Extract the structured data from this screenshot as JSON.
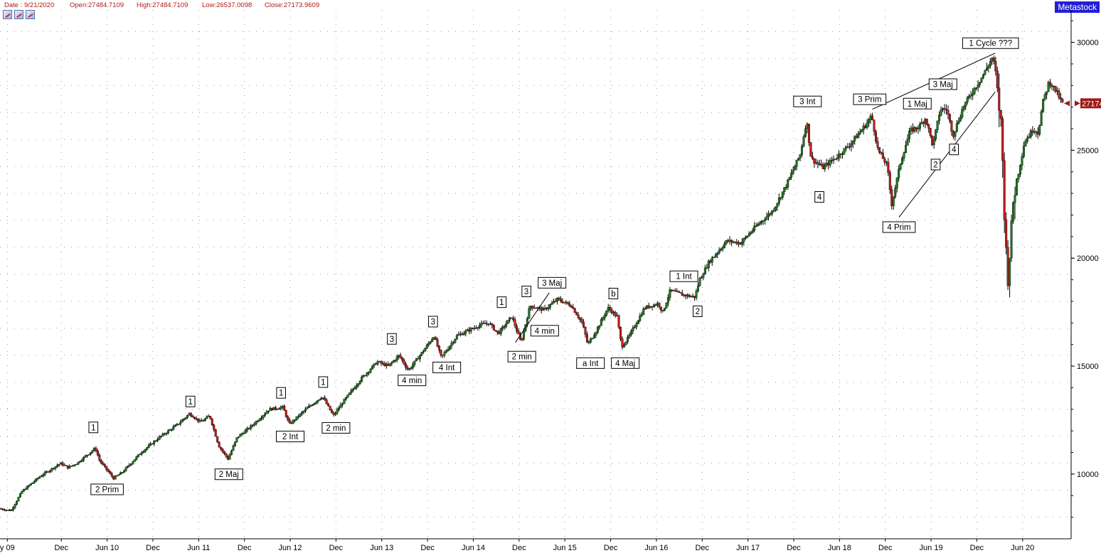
{
  "header": {
    "date": "Date : 9/21/2020",
    "open": "Open:27484.7109",
    "high": "High:27484.7109",
    "low": "Low:26537.0098",
    "close": "Close:27173.9609"
  },
  "brand": "Metastock",
  "toolbar_icons": [
    "chart-zoom-icon",
    "chart-scroll-icon",
    "chart-draw-icon"
  ],
  "colors": {
    "up": "#1a7a1a",
    "down": "#c41818",
    "wick": "#000000",
    "price_marker": "#a01818",
    "brand_bg": "#1f1fd6"
  },
  "chart_data": {
    "type": "candlestick",
    "series_name": "",
    "last_price_label": "27174",
    "ylim": [
      7000,
      31500
    ],
    "y_ticks": [
      10000,
      15000,
      20000,
      25000,
      30000
    ],
    "y_tick_labels": [
      "10000",
      "15000",
      "20000",
      "25000",
      "30000"
    ],
    "x_range": [
      2009.25,
      2020.95
    ],
    "x_ticks": [
      {
        "t": 2009.33,
        "label": "y 09"
      },
      {
        "t": 2009.92,
        "label": "Dec"
      },
      {
        "t": 2010.42,
        "label": "Jun 10"
      },
      {
        "t": 2010.92,
        "label": "Dec"
      },
      {
        "t": 2011.42,
        "label": "Jun 11"
      },
      {
        "t": 2011.92,
        "label": "Dec"
      },
      {
        "t": 2012.42,
        "label": "Jun 12"
      },
      {
        "t": 2012.92,
        "label": "Dec"
      },
      {
        "t": 2013.42,
        "label": "Jun 13"
      },
      {
        "t": 2013.92,
        "label": "Dec"
      },
      {
        "t": 2014.42,
        "label": "Jun 14"
      },
      {
        "t": 2014.92,
        "label": "Dec"
      },
      {
        "t": 2015.42,
        "label": "Jun 15"
      },
      {
        "t": 2015.92,
        "label": "Dec"
      },
      {
        "t": 2016.42,
        "label": "Jun 16"
      },
      {
        "t": 2016.92,
        "label": "Dec"
      },
      {
        "t": 2017.42,
        "label": "Jun 17"
      },
      {
        "t": 2017.92,
        "label": "Dec"
      },
      {
        "t": 2018.42,
        "label": "Jun 18"
      },
      {
        "t": 2018.92,
        "label": "Dec"
      },
      {
        "t": 2019.42,
        "label": "Jun 19"
      },
      {
        "t": 2019.92,
        "label": "Dec"
      },
      {
        "t": 2020.42,
        "label": "Jun 20"
      }
    ],
    "price_path": [
      [
        2009.25,
        8400
      ],
      [
        2009.38,
        8300
      ],
      [
        2009.5,
        9200
      ],
      [
        2009.7,
        9900
      ],
      [
        2009.92,
        10500
      ],
      [
        2010.0,
        10300
      ],
      [
        2010.1,
        10500
      ],
      [
        2010.3,
        11200
      ],
      [
        2010.35,
        10600
      ],
      [
        2010.5,
        9800
      ],
      [
        2010.6,
        10100
      ],
      [
        2010.8,
        11000
      ],
      [
        2011.0,
        11700
      ],
      [
        2011.2,
        12300
      ],
      [
        2011.33,
        12800
      ],
      [
        2011.45,
        12400
      ],
      [
        2011.55,
        12700
      ],
      [
        2011.65,
        11300
      ],
      [
        2011.75,
        10700
      ],
      [
        2011.85,
        11700
      ],
      [
        2012.0,
        12200
      ],
      [
        2012.2,
        13000
      ],
      [
        2012.35,
        13100
      ],
      [
        2012.42,
        12300
      ],
      [
        2012.6,
        13000
      ],
      [
        2012.78,
        13600
      ],
      [
        2012.9,
        12700
      ],
      [
        2013.0,
        13300
      ],
      [
        2013.2,
        14400
      ],
      [
        2013.38,
        15200
      ],
      [
        2013.5,
        15000
      ],
      [
        2013.62,
        15500
      ],
      [
        2013.72,
        14800
      ],
      [
        2013.9,
        15800
      ],
      [
        2014.0,
        16400
      ],
      [
        2014.08,
        15400
      ],
      [
        2014.25,
        16400
      ],
      [
        2014.5,
        16900
      ],
      [
        2014.6,
        17000
      ],
      [
        2014.7,
        16500
      ],
      [
        2014.85,
        17300
      ],
      [
        2014.95,
        16100
      ],
      [
        2015.05,
        17800
      ],
      [
        2015.2,
        17600
      ],
      [
        2015.35,
        18100
      ],
      [
        2015.5,
        17800
      ],
      [
        2015.62,
        17000
      ],
      [
        2015.68,
        16000
      ],
      [
        2015.78,
        16700
      ],
      [
        2015.9,
        17700
      ],
      [
        2016.0,
        17300
      ],
      [
        2016.05,
        15900
      ],
      [
        2016.12,
        16300
      ],
      [
        2016.3,
        17700
      ],
      [
        2016.45,
        17900
      ],
      [
        2016.5,
        17500
      ],
      [
        2016.58,
        18500
      ],
      [
        2016.72,
        18300
      ],
      [
        2016.85,
        18200
      ],
      [
        2016.9,
        19000
      ],
      [
        2017.0,
        19800
      ],
      [
        2017.2,
        20800
      ],
      [
        2017.35,
        20700
      ],
      [
        2017.5,
        21400
      ],
      [
        2017.7,
        22200
      ],
      [
        2017.85,
        23400
      ],
      [
        2018.0,
        24800
      ],
      [
        2018.07,
        26400
      ],
      [
        2018.12,
        24600
      ],
      [
        2018.25,
        24200
      ],
      [
        2018.4,
        24700
      ],
      [
        2018.55,
        25300
      ],
      [
        2018.72,
        26200
      ],
      [
        2018.78,
        26600
      ],
      [
        2018.85,
        25000
      ],
      [
        2018.95,
        24300
      ],
      [
        2019.0,
        22500
      ],
      [
        2019.1,
        24500
      ],
      [
        2019.2,
        25900
      ],
      [
        2019.3,
        26100
      ],
      [
        2019.37,
        26500
      ],
      [
        2019.45,
        25200
      ],
      [
        2019.53,
        26900
      ],
      [
        2019.6,
        26900
      ],
      [
        2019.67,
        25700
      ],
      [
        2019.78,
        27000
      ],
      [
        2019.88,
        27700
      ],
      [
        2020.0,
        28500
      ],
      [
        2020.1,
        29300
      ],
      [
        2020.13,
        28800
      ],
      [
        2020.2,
        25900
      ],
      [
        2020.24,
        21000
      ],
      [
        2020.27,
        19000
      ],
      [
        2020.33,
        22800
      ],
      [
        2020.4,
        24300
      ],
      [
        2020.45,
        25400
      ],
      [
        2020.55,
        26000
      ],
      [
        2020.6,
        25800
      ],
      [
        2020.65,
        27200
      ],
      [
        2020.72,
        28200
      ],
      [
        2020.8,
        27700
      ],
      [
        2020.86,
        27174
      ]
    ],
    "wave_labels": [
      {
        "text": "1",
        "t": 2010.27,
        "price": 11700,
        "pos": "above"
      },
      {
        "text": "2 Prim",
        "t": 2010.42,
        "price": 9750,
        "pos": "below"
      },
      {
        "text": "1",
        "t": 2011.33,
        "price": 12900,
        "pos": "above"
      },
      {
        "text": "2 Maj",
        "t": 2011.75,
        "price": 10450,
        "pos": "below"
      },
      {
        "text": "1",
        "t": 2012.32,
        "price": 13300,
        "pos": "above"
      },
      {
        "text": "2 Int",
        "t": 2012.42,
        "price": 12200,
        "pos": "below"
      },
      {
        "text": "1",
        "t": 2012.78,
        "price": 13800,
        "pos": "above"
      },
      {
        "text": "2 min",
        "t": 2012.92,
        "price": 12600,
        "pos": "below"
      },
      {
        "text": "3",
        "t": 2013.53,
        "price": 15800,
        "pos": "above"
      },
      {
        "text": "4 min",
        "t": 2013.75,
        "price": 14800,
        "pos": "below"
      },
      {
        "text": "3",
        "t": 2013.98,
        "price": 16600,
        "pos": "above"
      },
      {
        "text": "4 Int",
        "t": 2014.13,
        "price": 15400,
        "pos": "below"
      },
      {
        "text": "1",
        "t": 2014.73,
        "price": 17500,
        "pos": "above"
      },
      {
        "text": "2 min",
        "t": 2014.95,
        "price": 15900,
        "pos": "below"
      },
      {
        "text": "3",
        "t": 2015.0,
        "price": 18000,
        "pos": "above"
      },
      {
        "text": "3 Maj",
        "t": 2015.28,
        "price": 18400,
        "pos": "above"
      },
      {
        "text": "4 min",
        "t": 2015.2,
        "price": 17100,
        "pos": "below"
      },
      {
        "text": "b",
        "t": 2015.95,
        "price": 17900,
        "pos": "above"
      },
      {
        "text": "a Int",
        "t": 2015.7,
        "price": 15600,
        "pos": "below"
      },
      {
        "text": "4 Maj",
        "t": 2016.08,
        "price": 15600,
        "pos": "below"
      },
      {
        "text": "1 Int",
        "t": 2016.72,
        "price": 18700,
        "pos": "above"
      },
      {
        "text": "2",
        "t": 2016.87,
        "price": 18000,
        "pos": "below"
      },
      {
        "text": "3 Int",
        "t": 2018.07,
        "price": 26800,
        "pos": "above"
      },
      {
        "text": "4",
        "t": 2018.2,
        "price": 23300,
        "pos": "below"
      },
      {
        "text": "3 Prim",
        "t": 2018.75,
        "price": 26900,
        "pos": "above"
      },
      {
        "text": "4 Prim",
        "t": 2019.07,
        "price": 21900,
        "pos": "below"
      },
      {
        "text": "1 Maj",
        "t": 2019.27,
        "price": 26700,
        "pos": "above"
      },
      {
        "text": "2",
        "t": 2019.47,
        "price": 24800,
        "pos": "below"
      },
      {
        "text": "3 Maj",
        "t": 2019.55,
        "price": 27600,
        "pos": "above"
      },
      {
        "text": "4",
        "t": 2019.67,
        "price": 25500,
        "pos": "below"
      },
      {
        "text": "1 Cycle ???",
        "t": 2020.07,
        "price": 29500,
        "pos": "above"
      }
    ],
    "trend_lines": [
      {
        "t1": 2014.88,
        "p1": 16100,
        "t2": 2015.25,
        "p2": 18400
      },
      {
        "t1": 2018.78,
        "p1": 26900,
        "t2": 2020.12,
        "p2": 29500
      },
      {
        "t1": 2019.07,
        "p1": 21900,
        "t2": 2020.12,
        "p2": 27700
      }
    ]
  }
}
